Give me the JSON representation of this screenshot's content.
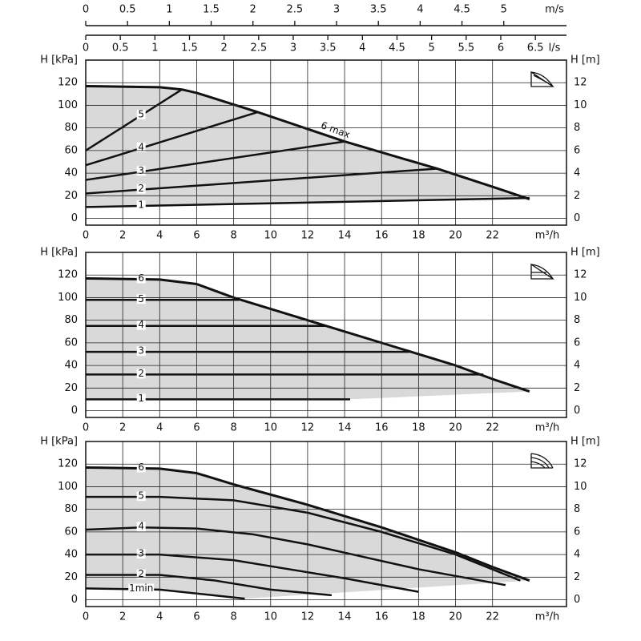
{
  "flow_scales": [
    {
      "label": "m/s",
      "xlim": [
        0,
        5.75
      ],
      "xticks": [
        0,
        0.5,
        1,
        1.5,
        2,
        2.5,
        3,
        3.5,
        4,
        4.5,
        5
      ]
    },
    {
      "label": "l/s",
      "xlim": [
        0,
        6.95
      ],
      "xticks": [
        0,
        0.5,
        1,
        1.5,
        2,
        2.5,
        3,
        3.5,
        4,
        4.5,
        5,
        5.5,
        6,
        6.5
      ]
    }
  ],
  "chart_data": [
    {
      "type": "line",
      "x_label": "m³/h",
      "y_label": "H [kPa]",
      "y2_label": "H [m]",
      "xlim": [
        0,
        26
      ],
      "xticks": [
        0,
        2,
        4,
        6,
        8,
        10,
        12,
        14,
        16,
        18,
        20,
        22
      ],
      "ylim": [
        -6,
        140
      ],
      "yticks": [
        0,
        20,
        40,
        60,
        80,
        100,
        120
      ],
      "y2lim": [
        -0.6,
        14
      ],
      "y2ticks": [
        0,
        2,
        4,
        6,
        8,
        10,
        12
      ],
      "grid": true,
      "area_color": "#d9d9d9",
      "series": [
        {
          "name": "1",
          "color": "#111111",
          "x": [
            0,
            24
          ],
          "values": [
            10,
            18
          ]
        },
        {
          "name": "2",
          "color": "#111111",
          "x": [
            0,
            19
          ],
          "values": [
            22,
            44
          ]
        },
        {
          "name": "3",
          "color": "#111111",
          "x": [
            0,
            14
          ],
          "values": [
            34,
            68
          ]
        },
        {
          "name": "4",
          "color": "#111111",
          "x": [
            0,
            9.3
          ],
          "values": [
            47,
            94
          ]
        },
        {
          "name": "5",
          "color": "#111111",
          "x": [
            0,
            5.2
          ],
          "values": [
            60,
            114
          ]
        },
        {
          "name": "6 max",
          "color": "#111111",
          "x": [
            0,
            4,
            5.2,
            6,
            9.3,
            14,
            19,
            22,
            24
          ],
          "values": [
            117,
            116,
            114,
            111,
            94,
            68,
            44,
            28,
            17
          ]
        }
      ]
    },
    {
      "type": "line",
      "x_label": "m³/h",
      "y_label": "H [kPa]",
      "y2_label": "H [m]",
      "xlim": [
        0,
        26
      ],
      "xticks": [
        0,
        2,
        4,
        6,
        8,
        10,
        12,
        14,
        16,
        18,
        20,
        22
      ],
      "ylim": [
        -6,
        140
      ],
      "yticks": [
        0,
        20,
        40,
        60,
        80,
        100,
        120
      ],
      "y2lim": [
        -0.6,
        14
      ],
      "y2ticks": [
        0,
        2,
        4,
        6,
        8,
        10,
        12
      ],
      "grid": true,
      "area_color": "#d9d9d9",
      "series": [
        {
          "name": "1",
          "color": "#111111",
          "x": [
            0,
            14.3
          ],
          "values": [
            10,
            10
          ]
        },
        {
          "name": "2",
          "color": "#111111",
          "x": [
            0,
            21.5
          ],
          "values": [
            32,
            32
          ]
        },
        {
          "name": "3",
          "color": "#111111",
          "x": [
            0,
            17.5
          ],
          "values": [
            52,
            52
          ]
        },
        {
          "name": "4",
          "color": "#111111",
          "x": [
            0,
            13
          ],
          "values": [
            75,
            75
          ]
        },
        {
          "name": "5",
          "color": "#111111",
          "x": [
            0,
            8.3
          ],
          "values": [
            98,
            98
          ]
        },
        {
          "name": "6",
          "color": "#111111",
          "x": [
            0,
            4,
            6,
            8,
            12,
            16,
            20,
            22,
            24
          ],
          "values": [
            117,
            116,
            112,
            100,
            80,
            60,
            40,
            28,
            17
          ]
        }
      ]
    },
    {
      "type": "line",
      "x_label": "m³/h",
      "y_label": "H [kPa]",
      "y2_label": "H [m]",
      "xlim": [
        0,
        26
      ],
      "xticks": [
        0,
        2,
        4,
        6,
        8,
        10,
        12,
        14,
        16,
        18,
        20,
        22
      ],
      "ylim": [
        -6,
        140
      ],
      "yticks": [
        0,
        20,
        40,
        60,
        80,
        100,
        120
      ],
      "y2lim": [
        -0.6,
        14
      ],
      "y2ticks": [
        0,
        2,
        4,
        6,
        8,
        10,
        12
      ],
      "grid": true,
      "area_color": "#d9d9d9",
      "series": [
        {
          "name": "1min",
          "color": "#111111",
          "x": [
            0,
            4,
            8.6
          ],
          "values": [
            10,
            9,
            1
          ]
        },
        {
          "name": "2",
          "color": "#111111",
          "x": [
            0,
            4,
            7,
            10,
            13.3
          ],
          "values": [
            22,
            22,
            17,
            9,
            4
          ]
        },
        {
          "name": "3",
          "color": "#111111",
          "x": [
            0,
            4,
            8,
            11,
            14,
            18
          ],
          "values": [
            40,
            40,
            35,
            27,
            19,
            7
          ]
        },
        {
          "name": "4",
          "color": "#111111",
          "x": [
            0,
            3,
            6,
            9,
            12,
            15,
            18,
            22.7
          ],
          "values": [
            62,
            64,
            63,
            58,
            49,
            38,
            27,
            13
          ]
        },
        {
          "name": "5",
          "color": "#111111",
          "x": [
            0,
            4,
            8,
            12,
            16,
            20,
            23.5
          ],
          "values": [
            91,
            91,
            88,
            77,
            60,
            40,
            17
          ]
        },
        {
          "name": "6",
          "color": "#111111",
          "x": [
            0,
            4,
            6,
            8,
            12,
            16,
            20,
            22,
            24
          ],
          "values": [
            117,
            116,
            112,
            102,
            84,
            64,
            42,
            29,
            17
          ]
        }
      ]
    }
  ]
}
